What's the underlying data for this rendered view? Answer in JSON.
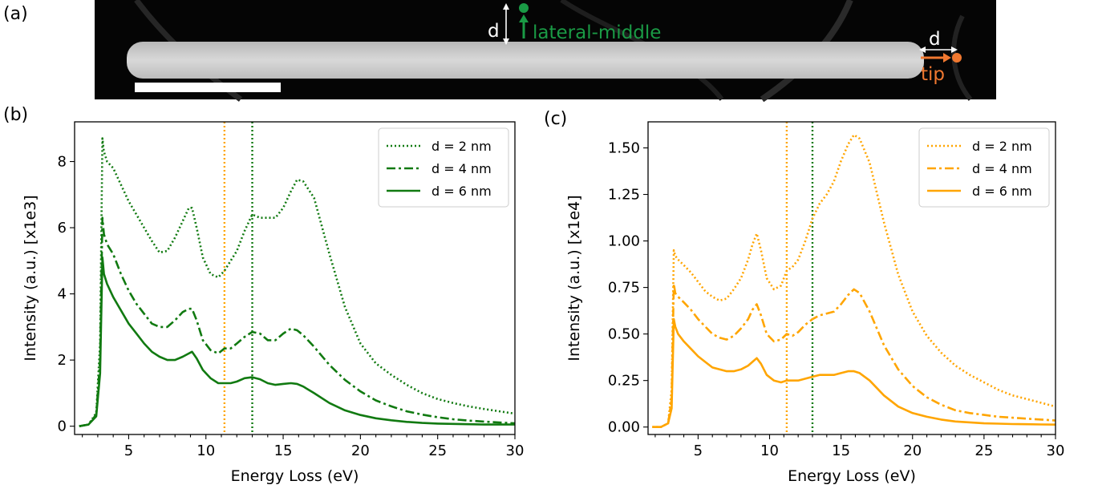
{
  "panels": {
    "a": "(a)",
    "b": "(b)",
    "c": "(c)"
  },
  "micrograph": {
    "distance_symbol": "d",
    "lateral_label": "lateral-middle",
    "tip_label": "tip",
    "lateral_color": "#1a9a45",
    "tip_color": "#f07830"
  },
  "chart_data": [
    {
      "type": "line",
      "panel": "(b)",
      "xlabel": "Energy Loss (eV)",
      "ylabel": "Intensity (a.u.) [x1e3]",
      "xlim": [
        1.5,
        30
      ],
      "ylim": [
        -0.25,
        9.2
      ],
      "xticks": [
        5,
        10,
        15,
        20,
        25,
        30
      ],
      "yticks": [
        0,
        2,
        4,
        6,
        8
      ],
      "color": "#117a11",
      "legend_position": "top-right",
      "grid": false,
      "vlines": [
        {
          "x": 11.2,
          "color": "#ffa500",
          "style": "dotted"
        },
        {
          "x": 13.0,
          "color": "#117a11",
          "style": "dotted"
        }
      ],
      "series": [
        {
          "name": "d = 2 nm",
          "style": "dotted",
          "x": [
            1.8,
            2.4,
            2.9,
            3.15,
            3.3,
            3.4,
            3.6,
            4.0,
            4.5,
            5.0,
            5.5,
            6.0,
            6.5,
            7.0,
            7.5,
            8.0,
            8.5,
            8.9,
            9.1,
            9.4,
            9.8,
            10.3,
            10.8,
            11.2,
            11.6,
            12.0,
            12.5,
            13.0,
            13.5,
            14.0,
            14.5,
            15.0,
            15.5,
            15.9,
            16.3,
            17.0,
            18.0,
            19.0,
            20.0,
            21.0,
            22.0,
            23.0,
            24.0,
            25.0,
            26.0,
            27.0,
            28.0,
            29.0,
            30.0
          ],
          "y": [
            0,
            0.05,
            0.4,
            2.5,
            8.7,
            8.3,
            8.0,
            7.8,
            7.3,
            6.8,
            6.4,
            6.0,
            5.6,
            5.25,
            5.3,
            5.7,
            6.2,
            6.6,
            6.6,
            6.0,
            5.1,
            4.6,
            4.5,
            4.7,
            5.0,
            5.3,
            5.9,
            6.4,
            6.3,
            6.3,
            6.3,
            6.6,
            7.1,
            7.45,
            7.4,
            6.9,
            5.2,
            3.6,
            2.5,
            1.9,
            1.55,
            1.25,
            1.0,
            0.82,
            0.7,
            0.6,
            0.52,
            0.45,
            0.38
          ]
        },
        {
          "name": "d = 4 nm",
          "style": "dashdot",
          "x": [
            1.8,
            2.4,
            2.9,
            3.15,
            3.3,
            3.4,
            3.6,
            4.0,
            4.5,
            5.0,
            5.5,
            6.0,
            6.5,
            7.0,
            7.5,
            8.0,
            8.5,
            8.9,
            9.1,
            9.4,
            9.8,
            10.3,
            10.8,
            11.2,
            11.6,
            12.0,
            12.5,
            13.0,
            13.5,
            14.0,
            14.5,
            15.0,
            15.5,
            15.9,
            16.3,
            17.0,
            18.0,
            19.0,
            20.0,
            21.0,
            22.0,
            23.0,
            24.0,
            25.0,
            26.0,
            27.0,
            28.0,
            29.0,
            30.0
          ],
          "y": [
            0,
            0.05,
            0.35,
            2.0,
            6.3,
            5.8,
            5.5,
            5.2,
            4.6,
            4.1,
            3.7,
            3.4,
            3.1,
            3.0,
            3.0,
            3.2,
            3.45,
            3.55,
            3.55,
            3.2,
            2.6,
            2.3,
            2.2,
            2.35,
            2.35,
            2.5,
            2.7,
            2.85,
            2.8,
            2.6,
            2.6,
            2.8,
            2.95,
            2.9,
            2.75,
            2.4,
            1.85,
            1.4,
            1.05,
            0.78,
            0.6,
            0.45,
            0.35,
            0.27,
            0.21,
            0.17,
            0.14,
            0.11,
            0.09
          ]
        },
        {
          "name": "d = 6 nm",
          "style": "solid",
          "x": [
            1.8,
            2.4,
            2.9,
            3.15,
            3.3,
            3.4,
            3.6,
            4.0,
            4.5,
            5.0,
            5.5,
            6.0,
            6.5,
            7.0,
            7.5,
            8.0,
            8.5,
            8.9,
            9.1,
            9.4,
            9.8,
            10.3,
            10.8,
            11.2,
            11.6,
            12.0,
            12.5,
            13.0,
            13.5,
            14.0,
            14.5,
            15.0,
            15.5,
            15.9,
            16.3,
            17.0,
            18.0,
            19.0,
            20.0,
            21.0,
            22.0,
            23.0,
            24.0,
            25.0,
            26.0,
            27.0,
            28.0,
            29.0,
            30.0
          ],
          "y": [
            0,
            0.05,
            0.3,
            1.6,
            5.1,
            4.6,
            4.3,
            3.9,
            3.5,
            3.1,
            2.8,
            2.5,
            2.25,
            2.1,
            2.0,
            2.0,
            2.1,
            2.2,
            2.25,
            2.05,
            1.7,
            1.45,
            1.3,
            1.3,
            1.3,
            1.35,
            1.45,
            1.48,
            1.42,
            1.3,
            1.25,
            1.28,
            1.3,
            1.28,
            1.2,
            1.0,
            0.7,
            0.48,
            0.34,
            0.24,
            0.18,
            0.13,
            0.1,
            0.08,
            0.07,
            0.06,
            0.05,
            0.05,
            0.05
          ]
        }
      ]
    },
    {
      "type": "line",
      "panel": "(c)",
      "xlabel": "Energy Loss (eV)",
      "ylabel": "Intensity (a.u.) [x1e4]",
      "xlim": [
        1.5,
        30
      ],
      "ylim": [
        -0.04,
        1.64
      ],
      "xticks": [
        5,
        10,
        15,
        20,
        25,
        30
      ],
      "yticks": [
        0.0,
        0.25,
        0.5,
        0.75,
        1.0,
        1.25,
        1.5
      ],
      "ytick_labels": [
        "0.00",
        "0.25",
        "0.50",
        "0.75",
        "1.00",
        "1.25",
        "1.50"
      ],
      "color": "#ffa500",
      "legend_position": "top-right",
      "grid": false,
      "vlines": [
        {
          "x": 11.2,
          "color": "#ffa500",
          "style": "dotted"
        },
        {
          "x": 13.0,
          "color": "#117a11",
          "style": "dotted"
        }
      ],
      "series": [
        {
          "name": "d = 2 nm",
          "style": "dotted",
          "x": [
            1.8,
            2.4,
            2.9,
            3.15,
            3.3,
            3.4,
            3.6,
            4.0,
            4.5,
            5.0,
            5.5,
            6.0,
            6.5,
            7.0,
            7.5,
            8.0,
            8.5,
            8.8,
            9.1,
            9.4,
            9.8,
            10.3,
            10.8,
            11.2,
            11.6,
            12.0,
            12.5,
            13.0,
            13.5,
            14.0,
            14.5,
            15.0,
            15.5,
            15.9,
            16.3,
            17.0,
            18.0,
            19.0,
            20.0,
            21.0,
            22.0,
            23.0,
            24.0,
            25.0,
            26.0,
            27.0,
            28.0,
            29.0,
            30.0
          ],
          "y": [
            0,
            0.0,
            0.02,
            0.2,
            0.95,
            0.92,
            0.9,
            0.87,
            0.83,
            0.78,
            0.73,
            0.7,
            0.68,
            0.69,
            0.74,
            0.8,
            0.9,
            0.98,
            1.04,
            0.95,
            0.8,
            0.74,
            0.76,
            0.84,
            0.86,
            0.9,
            1.0,
            1.12,
            1.2,
            1.25,
            1.32,
            1.43,
            1.52,
            1.57,
            1.55,
            1.42,
            1.1,
            0.82,
            0.62,
            0.49,
            0.4,
            0.33,
            0.28,
            0.24,
            0.2,
            0.17,
            0.15,
            0.13,
            0.11
          ]
        },
        {
          "name": "d = 4 nm",
          "style": "dashdot",
          "x": [
            1.8,
            2.4,
            2.9,
            3.15,
            3.3,
            3.4,
            3.6,
            4.0,
            4.5,
            5.0,
            5.5,
            6.0,
            6.5,
            7.0,
            7.5,
            8.0,
            8.5,
            8.8,
            9.1,
            9.4,
            9.8,
            10.3,
            10.8,
            11.2,
            11.6,
            12.0,
            12.5,
            13.0,
            13.5,
            14.0,
            14.5,
            15.0,
            15.5,
            15.9,
            16.3,
            17.0,
            18.0,
            19.0,
            20.0,
            21.0,
            22.0,
            23.0,
            24.0,
            25.0,
            26.0,
            27.0,
            28.0,
            29.0,
            30.0
          ],
          "y": [
            0,
            0.0,
            0.02,
            0.15,
            0.77,
            0.72,
            0.7,
            0.67,
            0.63,
            0.58,
            0.54,
            0.5,
            0.48,
            0.47,
            0.49,
            0.53,
            0.58,
            0.63,
            0.66,
            0.6,
            0.5,
            0.46,
            0.47,
            0.5,
            0.49,
            0.51,
            0.55,
            0.58,
            0.6,
            0.61,
            0.62,
            0.66,
            0.71,
            0.74,
            0.72,
            0.62,
            0.44,
            0.31,
            0.22,
            0.16,
            0.12,
            0.09,
            0.075,
            0.065,
            0.055,
            0.05,
            0.045,
            0.04,
            0.035
          ]
        },
        {
          "name": "d = 6 nm",
          "style": "solid",
          "x": [
            1.8,
            2.4,
            2.9,
            3.15,
            3.3,
            3.4,
            3.6,
            4.0,
            4.5,
            5.0,
            5.5,
            6.0,
            6.5,
            7.0,
            7.5,
            8.0,
            8.5,
            8.8,
            9.1,
            9.4,
            9.8,
            10.3,
            10.8,
            11.2,
            11.6,
            12.0,
            12.5,
            13.0,
            13.5,
            14.0,
            14.5,
            15.0,
            15.5,
            15.9,
            16.3,
            17.0,
            18.0,
            19.0,
            20.0,
            21.0,
            22.0,
            23.0,
            24.0,
            25.0,
            26.0,
            27.0,
            28.0,
            29.0,
            30.0
          ],
          "y": [
            0,
            0.0,
            0.02,
            0.1,
            0.58,
            0.54,
            0.5,
            0.46,
            0.42,
            0.38,
            0.35,
            0.32,
            0.31,
            0.3,
            0.3,
            0.31,
            0.33,
            0.35,
            0.37,
            0.34,
            0.28,
            0.25,
            0.24,
            0.25,
            0.25,
            0.25,
            0.26,
            0.27,
            0.28,
            0.28,
            0.28,
            0.29,
            0.3,
            0.3,
            0.29,
            0.25,
            0.17,
            0.11,
            0.075,
            0.055,
            0.04,
            0.03,
            0.025,
            0.02,
            0.018,
            0.016,
            0.015,
            0.014,
            0.013
          ]
        }
      ]
    }
  ]
}
